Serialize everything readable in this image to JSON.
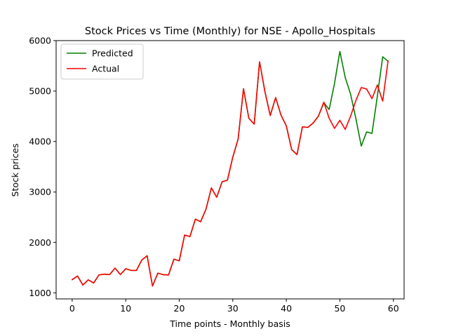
{
  "chart_data": {
    "type": "line",
    "title": "Stock Prices vs Time (Monthly) for NSE - Apollo_Hospitals",
    "xlabel": "Time points - Monthly basis",
    "ylabel": "Stock prices",
    "xlim": [
      -3,
      62
    ],
    "ylim": [
      880,
      6000
    ],
    "xticks": [
      0,
      10,
      20,
      30,
      40,
      50,
      60
    ],
    "yticks": [
      1000,
      2000,
      3000,
      4000,
      5000,
      6000
    ],
    "grid": false,
    "legend_position": "upper-left",
    "series": [
      {
        "name": "Predicted",
        "color": "#008000",
        "values": [
          1262,
          1333,
          1155,
          1258,
          1195,
          1355,
          1370,
          1362,
          1490,
          1362,
          1478,
          1445,
          1445,
          1650,
          1735,
          1135,
          1390,
          1360,
          1355,
          1668,
          1635,
          2145,
          2115,
          2460,
          2410,
          2660,
          3080,
          2895,
          3200,
          3235,
          3690,
          4050,
          5045,
          4460,
          4345,
          5580,
          4990,
          4515,
          4870,
          4525,
          4310,
          3840,
          3740,
          4290,
          4280,
          4365,
          4505,
          4770,
          4635,
          5150,
          5785,
          5270,
          4940,
          4450,
          3910,
          4190,
          4160,
          4895,
          5680,
          5590
        ]
      },
      {
        "name": "Actual",
        "color": "#ff0000",
        "values": [
          1262,
          1333,
          1155,
          1258,
          1195,
          1355,
          1370,
          1362,
          1490,
          1362,
          1478,
          1445,
          1445,
          1650,
          1735,
          1135,
          1390,
          1360,
          1355,
          1668,
          1635,
          2145,
          2115,
          2460,
          2410,
          2660,
          3080,
          2895,
          3200,
          3235,
          3690,
          4050,
          5045,
          4460,
          4345,
          5580,
          4990,
          4515,
          4870,
          4525,
          4310,
          3840,
          3740,
          4290,
          4280,
          4365,
          4505,
          4780,
          4460,
          4260,
          4420,
          4240,
          4500,
          4815,
          5070,
          5040,
          4850,
          5120,
          4800,
          5595
        ]
      }
    ]
  }
}
